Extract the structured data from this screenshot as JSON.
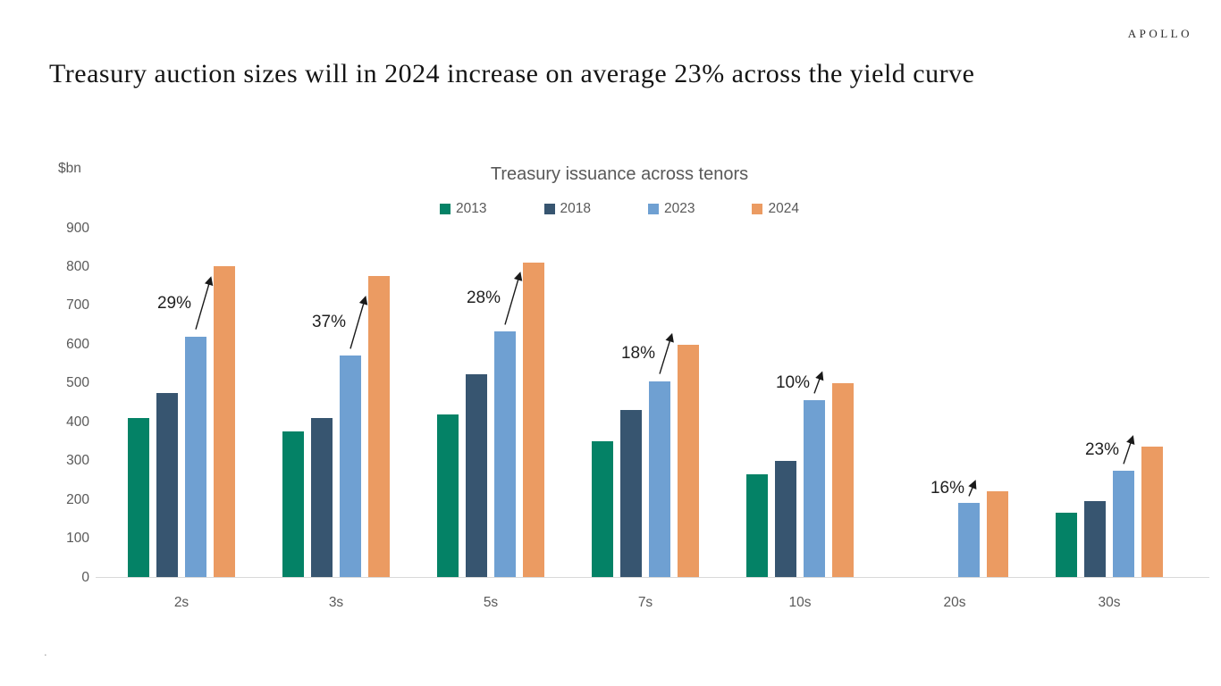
{
  "brand": {
    "logo": "APOLLO"
  },
  "page_title": "Treasury auction sizes will in 2024 increase on average 23% across the yield curve",
  "footnote_mark": ".",
  "colors": {
    "axis_line": "#d9d9d9",
    "muted_text": "#595959",
    "annotation_text": "#1f1f1f",
    "arrow": "#1a1a1a"
  },
  "chart_data": {
    "type": "bar",
    "title": "Treasury issuance across tenors",
    "unit_label": "$bn",
    "xlabel": "",
    "ylabel": "$bn",
    "ylim": [
      0,
      900
    ],
    "ytick_step": 100,
    "grid": false,
    "legend_position": "top",
    "categories": [
      "2s",
      "3s",
      "5s",
      "7s",
      "10s",
      "20s",
      "30s"
    ],
    "series": [
      {
        "name": "2013",
        "color": "#048266",
        "values": [
          410,
          375,
          420,
          350,
          265,
          null,
          165
        ]
      },
      {
        "name": "2018",
        "color": "#375570",
        "values": [
          475,
          410,
          522,
          430,
          300,
          null,
          195
        ]
      },
      {
        "name": "2023",
        "color": "#6fa0d2",
        "values": [
          620,
          570,
          632,
          505,
          455,
          190,
          273
        ]
      },
      {
        "name": "2024",
        "color": "#eb9b62",
        "values": [
          800,
          775,
          810,
          598,
          500,
          220,
          335
        ]
      }
    ],
    "annotations": [
      {
        "category": "2s",
        "label": "29%"
      },
      {
        "category": "3s",
        "label": "37%"
      },
      {
        "category": "5s",
        "label": "28%"
      },
      {
        "category": "7s",
        "label": "18%"
      },
      {
        "category": "10s",
        "label": "10%"
      },
      {
        "category": "20s",
        "label": "16%"
      },
      {
        "category": "30s",
        "label": "23%"
      }
    ]
  }
}
